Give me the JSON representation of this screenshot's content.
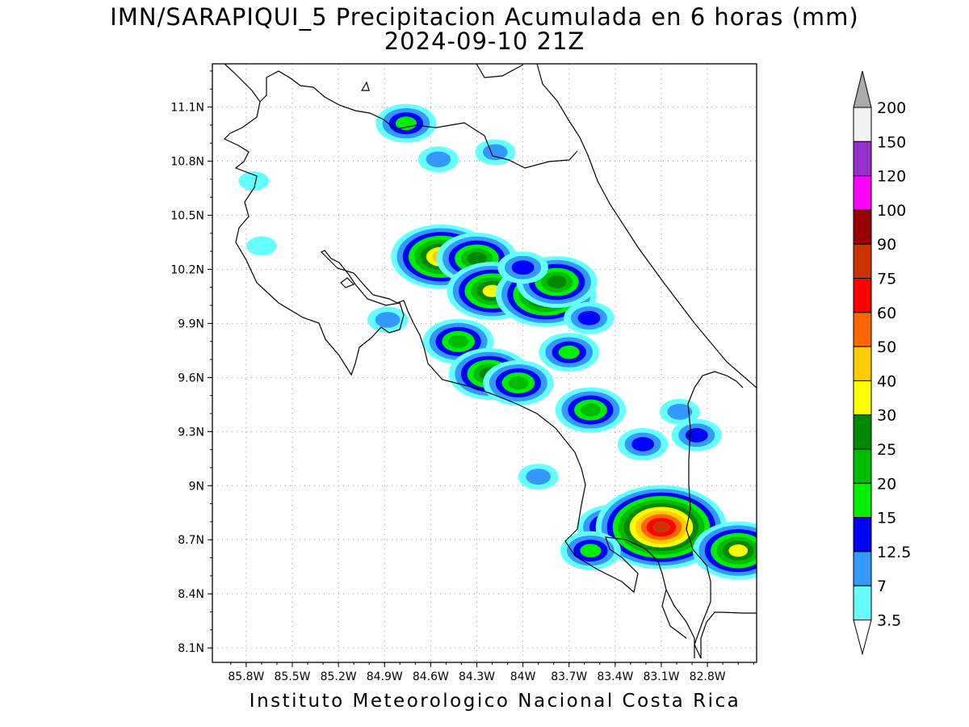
{
  "title": {
    "line1": "IMN/SARAPIQUI_5 Precipitacion Acumulada en 6 horas (mm)",
    "line2": "2024-09-10 21Z"
  },
  "footer": "Instituto Meteorologico Nacional Costa Rica",
  "map": {
    "lon_range": [
      -86.02,
      -82.48
    ],
    "lat_range": [
      8.02,
      11.34
    ],
    "lat_ticks": [
      "11.1N",
      "10.8N",
      "10.5N",
      "10.2N",
      "9.9N",
      "9.6N",
      "9.3N",
      "9N",
      "8.7N",
      "8.4N",
      "8.1N"
    ],
    "lon_ticks": [
      "85.8W",
      "85.5W",
      "85.2W",
      "84.9W",
      "84.6W",
      "84.3W",
      "84W",
      "83.7W",
      "83.4W",
      "83.1W",
      "82.8W"
    ],
    "grid": "dotted"
  },
  "legend": {
    "levels": [
      "200",
      "150",
      "120",
      "100",
      "90",
      "75",
      "60",
      "50",
      "40",
      "30",
      "25",
      "20",
      "15",
      "12.5",
      "7",
      "3.5"
    ],
    "colors": [
      "#f2f2f2",
      "#9932cc",
      "#ff00ff",
      "#990000",
      "#cc3300",
      "#ff0000",
      "#ff6600",
      "#ffcc00",
      "#ffff00",
      "#008800",
      "#00bb00",
      "#00ee00",
      "#0000ff",
      "#3399ff",
      "#66ffff"
    ],
    "over_color": "#aaaaaa",
    "under_color": "#ffffff"
  },
  "precip_cells": [
    {
      "lon": -84.76,
      "lat": 11.01,
      "max": 15
    },
    {
      "lon": -84.55,
      "lat": 10.81,
      "max": 7
    },
    {
      "lon": -84.18,
      "lat": 10.85,
      "max": 7
    },
    {
      "lon": -84.53,
      "lat": 10.27,
      "max": 40
    },
    {
      "lon": -84.3,
      "lat": 10.26,
      "max": 25
    },
    {
      "lon": -84.2,
      "lat": 10.08,
      "max": 30
    },
    {
      "lon": -83.85,
      "lat": 10.06,
      "max": 40
    },
    {
      "lon": -83.78,
      "lat": 10.13,
      "max": 25
    },
    {
      "lon": -84.0,
      "lat": 10.21,
      "max": 12.5
    },
    {
      "lon": -84.42,
      "lat": 9.8,
      "max": 20
    },
    {
      "lon": -84.22,
      "lat": 9.62,
      "max": 25
    },
    {
      "lon": -84.03,
      "lat": 9.57,
      "max": 20
    },
    {
      "lon": -83.7,
      "lat": 9.74,
      "max": 15
    },
    {
      "lon": -83.57,
      "lat": 9.93,
      "max": 12.5
    },
    {
      "lon": -83.56,
      "lat": 9.42,
      "max": 20
    },
    {
      "lon": -83.22,
      "lat": 9.23,
      "max": 12.5
    },
    {
      "lon": -83.42,
      "lat": 8.77,
      "max": 20
    },
    {
      "lon": -83.1,
      "lat": 8.77,
      "max": 75
    },
    {
      "lon": -82.6,
      "lat": 8.64,
      "max": 30
    },
    {
      "lon": -83.56,
      "lat": 8.64,
      "max": 15
    },
    {
      "lon": -83.9,
      "lat": 9.05,
      "max": 7
    },
    {
      "lon": -85.75,
      "lat": 10.69,
      "max": 3.5
    },
    {
      "lon": -85.7,
      "lat": 10.33,
      "max": 3.5
    },
    {
      "lon": -84.88,
      "lat": 9.92,
      "max": 7
    },
    {
      "lon": -82.98,
      "lat": 9.41,
      "max": 7
    },
    {
      "lon": -82.87,
      "lat": 9.28,
      "max": 12.5
    }
  ]
}
